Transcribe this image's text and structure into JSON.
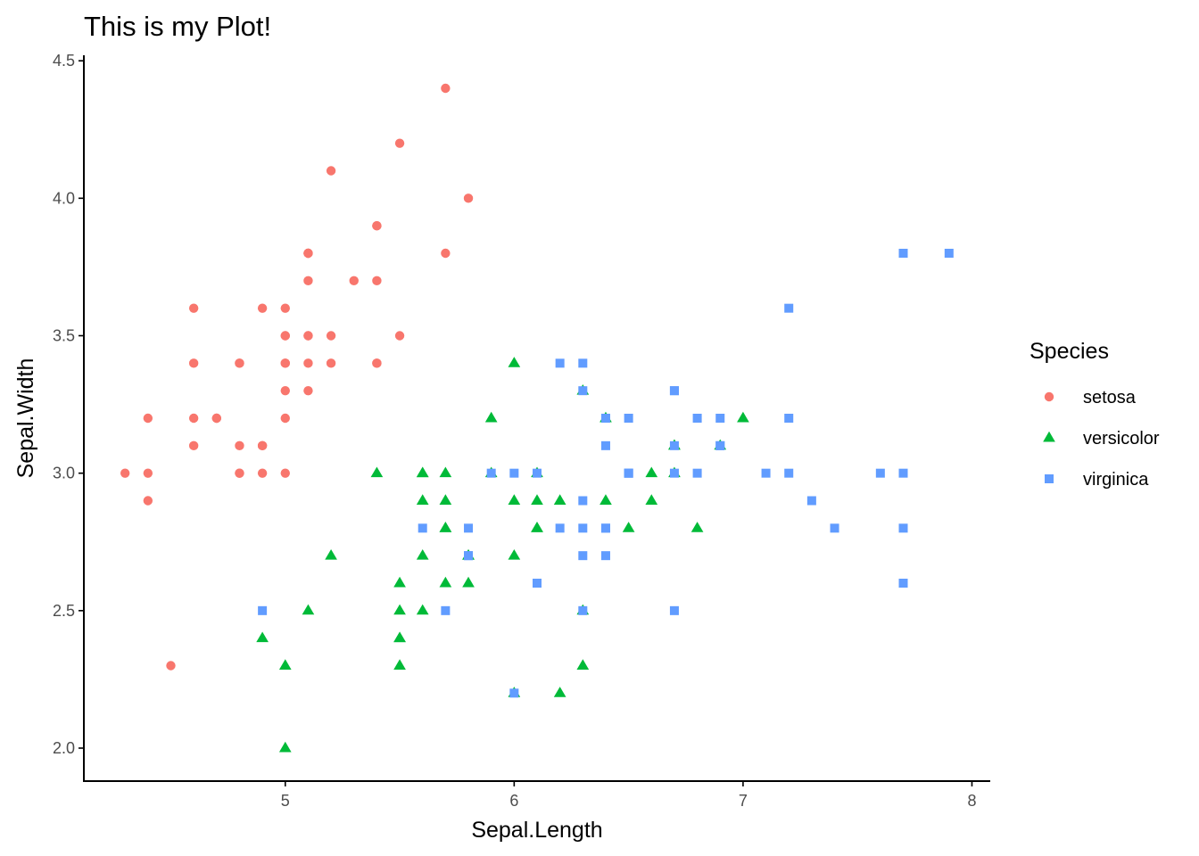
{
  "chart_data": {
    "type": "scatter",
    "title": "This is my Plot!",
    "xlabel": "Sepal.Length",
    "ylabel": "Sepal.Width",
    "xlim": [
      4.12,
      8.08
    ],
    "ylim": [
      1.88,
      4.52
    ],
    "x_ticks": [
      5,
      6,
      7,
      8
    ],
    "y_ticks": [
      2.0,
      2.5,
      3.0,
      3.5,
      4.0,
      4.5
    ],
    "x_tick_labels": [
      "5",
      "6",
      "7",
      "8"
    ],
    "y_tick_labels": [
      "2.0",
      "2.5",
      "3.0",
      "3.5",
      "4.0",
      "4.5"
    ],
    "grid": false,
    "legend": {
      "title": "Species",
      "position": "right"
    },
    "series": [
      {
        "name": "setosa",
        "color": "#F8766D",
        "shape": "circle",
        "points": [
          [
            5.1,
            3.5
          ],
          [
            4.9,
            3.0
          ],
          [
            4.7,
            3.2
          ],
          [
            4.6,
            3.1
          ],
          [
            5.0,
            3.6
          ],
          [
            5.4,
            3.9
          ],
          [
            4.6,
            3.4
          ],
          [
            5.0,
            3.4
          ],
          [
            4.4,
            2.9
          ],
          [
            4.9,
            3.1
          ],
          [
            5.4,
            3.7
          ],
          [
            4.8,
            3.4
          ],
          [
            4.8,
            3.0
          ],
          [
            4.3,
            3.0
          ],
          [
            5.8,
            4.0
          ],
          [
            5.7,
            4.4
          ],
          [
            5.4,
            3.9
          ],
          [
            5.1,
            3.5
          ],
          [
            5.7,
            3.8
          ],
          [
            5.1,
            3.8
          ],
          [
            5.4,
            3.4
          ],
          [
            5.1,
            3.7
          ],
          [
            4.6,
            3.6
          ],
          [
            5.1,
            3.3
          ],
          [
            4.8,
            3.4
          ],
          [
            5.0,
            3.0
          ],
          [
            5.0,
            3.4
          ],
          [
            5.2,
            3.5
          ],
          [
            5.2,
            3.4
          ],
          [
            4.7,
            3.2
          ],
          [
            4.8,
            3.1
          ],
          [
            5.4,
            3.4
          ],
          [
            5.2,
            4.1
          ],
          [
            5.5,
            4.2
          ],
          [
            4.9,
            3.1
          ],
          [
            5.0,
            3.2
          ],
          [
            5.5,
            3.5
          ],
          [
            4.9,
            3.6
          ],
          [
            4.4,
            3.0
          ],
          [
            5.1,
            3.4
          ],
          [
            5.0,
            3.5
          ],
          [
            4.5,
            2.3
          ],
          [
            4.4,
            3.2
          ],
          [
            5.0,
            3.5
          ],
          [
            5.1,
            3.8
          ],
          [
            4.8,
            3.0
          ],
          [
            5.1,
            3.8
          ],
          [
            4.6,
            3.2
          ],
          [
            5.3,
            3.7
          ],
          [
            5.0,
            3.3
          ]
        ]
      },
      {
        "name": "versicolor",
        "color": "#00BA38",
        "shape": "triangle",
        "points": [
          [
            7.0,
            3.2
          ],
          [
            6.4,
            3.2
          ],
          [
            6.9,
            3.1
          ],
          [
            5.5,
            2.3
          ],
          [
            6.5,
            2.8
          ],
          [
            5.7,
            2.8
          ],
          [
            6.3,
            3.3
          ],
          [
            4.9,
            2.4
          ],
          [
            6.6,
            2.9
          ],
          [
            5.2,
            2.7
          ],
          [
            5.0,
            2.0
          ],
          [
            5.9,
            3.0
          ],
          [
            6.0,
            2.2
          ],
          [
            6.1,
            2.9
          ],
          [
            5.6,
            2.9
          ],
          [
            6.7,
            3.1
          ],
          [
            5.6,
            3.0
          ],
          [
            5.8,
            2.7
          ],
          [
            6.2,
            2.2
          ],
          [
            5.6,
            2.5
          ],
          [
            5.9,
            3.2
          ],
          [
            6.1,
            2.8
          ],
          [
            6.3,
            2.5
          ],
          [
            6.1,
            2.8
          ],
          [
            6.4,
            2.9
          ],
          [
            6.6,
            3.0
          ],
          [
            6.8,
            2.8
          ],
          [
            6.7,
            3.0
          ],
          [
            6.0,
            2.9
          ],
          [
            5.7,
            2.6
          ],
          [
            5.5,
            2.4
          ],
          [
            5.5,
            2.4
          ],
          [
            5.8,
            2.7
          ],
          [
            6.0,
            2.7
          ],
          [
            5.4,
            3.0
          ],
          [
            6.0,
            3.4
          ],
          [
            6.7,
            3.1
          ],
          [
            6.3,
            2.3
          ],
          [
            5.6,
            3.0
          ],
          [
            5.5,
            2.5
          ],
          [
            5.5,
            2.6
          ],
          [
            6.1,
            3.0
          ],
          [
            5.8,
            2.6
          ],
          [
            5.0,
            2.3
          ],
          [
            5.6,
            2.7
          ],
          [
            5.7,
            3.0
          ],
          [
            5.7,
            2.9
          ],
          [
            6.2,
            2.9
          ],
          [
            5.1,
            2.5
          ],
          [
            5.7,
            2.8
          ]
        ]
      },
      {
        "name": "virginica",
        "color": "#619CFF",
        "shape": "square",
        "points": [
          [
            6.3,
            3.3
          ],
          [
            5.8,
            2.7
          ],
          [
            7.1,
            3.0
          ],
          [
            6.3,
            2.9
          ],
          [
            6.5,
            3.0
          ],
          [
            7.6,
            3.0
          ],
          [
            4.9,
            2.5
          ],
          [
            7.3,
            2.9
          ],
          [
            6.7,
            2.5
          ],
          [
            7.2,
            3.6
          ],
          [
            6.5,
            3.2
          ],
          [
            6.4,
            2.7
          ],
          [
            6.8,
            3.0
          ],
          [
            5.7,
            2.5
          ],
          [
            5.8,
            2.8
          ],
          [
            6.4,
            3.2
          ],
          [
            6.5,
            3.0
          ],
          [
            7.7,
            3.8
          ],
          [
            7.7,
            2.6
          ],
          [
            6.0,
            2.2
          ],
          [
            6.9,
            3.2
          ],
          [
            5.6,
            2.8
          ],
          [
            7.7,
            2.8
          ],
          [
            6.3,
            2.7
          ],
          [
            6.7,
            3.3
          ],
          [
            7.2,
            3.2
          ],
          [
            6.2,
            2.8
          ],
          [
            6.1,
            3.0
          ],
          [
            6.4,
            2.8
          ],
          [
            7.2,
            3.0
          ],
          [
            7.4,
            2.8
          ],
          [
            7.9,
            3.8
          ],
          [
            6.4,
            2.8
          ],
          [
            6.3,
            2.8
          ],
          [
            6.1,
            2.6
          ],
          [
            7.7,
            3.0
          ],
          [
            6.3,
            3.4
          ],
          [
            6.4,
            3.1
          ],
          [
            6.0,
            3.0
          ],
          [
            6.9,
            3.1
          ],
          [
            6.7,
            3.1
          ],
          [
            6.9,
            3.1
          ],
          [
            5.8,
            2.7
          ],
          [
            6.8,
            3.2
          ],
          [
            6.7,
            3.3
          ],
          [
            6.7,
            3.0
          ],
          [
            6.3,
            2.5
          ],
          [
            6.5,
            3.0
          ],
          [
            6.2,
            3.4
          ],
          [
            5.9,
            3.0
          ]
        ]
      }
    ]
  }
}
